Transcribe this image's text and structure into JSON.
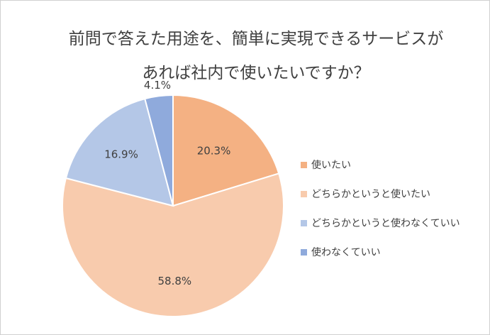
{
  "chart_data": {
    "type": "pie",
    "title": [
      "前問で答えた用途を、簡単に実現できるサービスが",
      "あれば社内で使いたいですか？"
    ],
    "slices": [
      {
        "name": "使いたい",
        "value": 20.3,
        "label": "20.3%",
        "color": "#F4B183"
      },
      {
        "name": "どちらかというと使いたい",
        "value": 58.8,
        "label": "58.8%",
        "color": "#F8CBAD"
      },
      {
        "name": "どちらかというと使わなくていい",
        "value": 16.9,
        "label": "16.9%",
        "color": "#B4C7E7"
      },
      {
        "name": "使わなくていい",
        "value": 4.1,
        "label": "4.1%",
        "color": "#8FAADC"
      }
    ],
    "legend_position": "right",
    "start_angle": "12 o'clock",
    "direction": "clockwise"
  }
}
